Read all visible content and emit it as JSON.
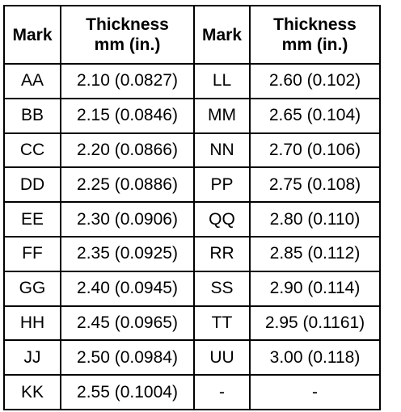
{
  "table": {
    "headers": {
      "mark_left": "Mark",
      "thickness_left_line1": "Thickness",
      "thickness_left_line2": "mm (in.)",
      "mark_right": "Mark",
      "thickness_right_line1": "Thickness",
      "thickness_right_line2": "mm (in.)"
    },
    "rows": [
      {
        "mark1": "AA",
        "thk1": "2.10 (0.0827)",
        "mark2": "LL",
        "thk2": "2.60 (0.102)"
      },
      {
        "mark1": "BB",
        "thk1": "2.15 (0.0846)",
        "mark2": "MM",
        "thk2": "2.65 (0.104)"
      },
      {
        "mark1": "CC",
        "thk1": "2.20 (0.0866)",
        "mark2": "NN",
        "thk2": "2.70 (0.106)"
      },
      {
        "mark1": "DD",
        "thk1": "2.25 (0.0886)",
        "mark2": "PP",
        "thk2": "2.75 (0.108)"
      },
      {
        "mark1": "EE",
        "thk1": "2.30 (0.0906)",
        "mark2": "QQ",
        "thk2": "2.80 (0.110)"
      },
      {
        "mark1": "FF",
        "thk1": "2.35 (0.0925)",
        "mark2": "RR",
        "thk2": "2.85 (0.112)"
      },
      {
        "mark1": "GG",
        "thk1": "2.40 (0.0945)",
        "mark2": "SS",
        "thk2": "2.90 (0.114)"
      },
      {
        "mark1": "HH",
        "thk1": "2.45 (0.0965)",
        "mark2": "TT",
        "thk2": "2.95 (0.1161)"
      },
      {
        "mark1": "JJ",
        "thk1": "2.50 (0.0984)",
        "mark2": "UU",
        "thk2": "3.00 (0.118)"
      },
      {
        "mark1": "KK",
        "thk1": "2.55 (0.1004)",
        "mark2": "-",
        "thk2": "-"
      }
    ]
  }
}
